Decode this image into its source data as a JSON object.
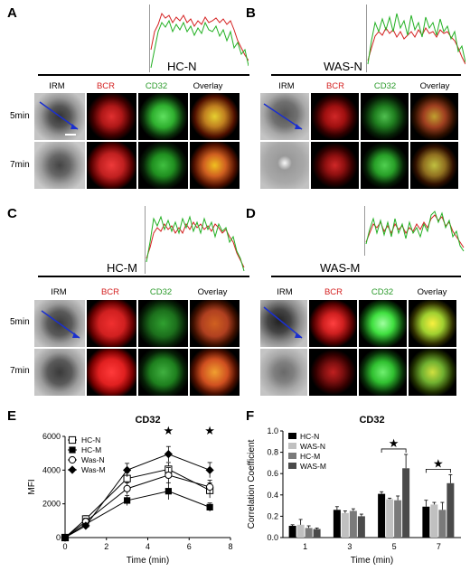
{
  "panels": {
    "A": {
      "letter": "A",
      "condition": "HC-N"
    },
    "B": {
      "letter": "B",
      "condition": "WAS-N"
    },
    "C": {
      "letter": "C",
      "condition": "HC-M"
    },
    "D": {
      "letter": "D",
      "condition": "WAS-M"
    }
  },
  "channels": [
    "IRM",
    "BCR",
    "CD32",
    "Overlay"
  ],
  "channel_colors": {
    "IRM": "#000000",
    "BCR": "#d42020",
    "CD32": "#2a9a2a",
    "Overlay": "#000000"
  },
  "times": [
    "5min",
    "7min"
  ],
  "chart_data": [
    {
      "panel": "E",
      "type": "line",
      "title": "CD32",
      "xlabel": "Time (min)",
      "ylabel": "MFI",
      "xlim": [
        0,
        8
      ],
      "ylim": [
        0,
        6000
      ],
      "xticks": [
        0,
        2,
        4,
        6,
        8
      ],
      "yticks": [
        0,
        2000,
        4000,
        6000
      ],
      "x": [
        0,
        1,
        3,
        5,
        7
      ],
      "series": [
        {
          "name": "HC-N",
          "marker": "open-square",
          "values": [
            0,
            1100,
            3500,
            4050,
            2800
          ],
          "errors": [
            0,
            200,
            350,
            400,
            450
          ]
        },
        {
          "name": "HC-M",
          "marker": "filled-square",
          "values": [
            0,
            800,
            2200,
            2750,
            1800
          ],
          "errors": [
            0,
            150,
            300,
            500,
            250
          ]
        },
        {
          "name": "Was-N",
          "marker": "open-circle",
          "values": [
            0,
            950,
            2900,
            3700,
            3000
          ],
          "errors": [
            0,
            200,
            350,
            450,
            400
          ]
        },
        {
          "name": "Was-M",
          "marker": "filled-diamond",
          "values": [
            0,
            700,
            4000,
            4950,
            4000
          ],
          "errors": [
            0,
            150,
            400,
            450,
            450
          ]
        }
      ],
      "annotations": [
        {
          "x": 5,
          "symbol": "★"
        },
        {
          "x": 7,
          "symbol": "★"
        }
      ],
      "legend": "top-left"
    },
    {
      "panel": "F",
      "type": "bar",
      "title": "CD32",
      "xlabel": "Time (min)",
      "ylabel": "Correlation Coefficient",
      "ylim": [
        0,
        1.0
      ],
      "yticks": [
        0.0,
        0.2,
        0.4,
        0.6,
        0.8,
        1.0
      ],
      "categories": [
        "1",
        "3",
        "5",
        "7"
      ],
      "series": [
        {
          "name": "HC-N",
          "color": "#000000",
          "values": [
            0.11,
            0.26,
            0.41,
            0.29
          ],
          "errors": [
            0.01,
            0.03,
            0.02,
            0.06
          ]
        },
        {
          "name": "WAS-N",
          "color": "#c0c0c0",
          "values": [
            0.12,
            0.23,
            0.36,
            0.31
          ],
          "errors": [
            0.05,
            0.02,
            0.01,
            0.02
          ]
        },
        {
          "name": "HC-M",
          "color": "#7a7a7a",
          "values": [
            0.09,
            0.25,
            0.35,
            0.26
          ],
          "errors": [
            0.02,
            0.02,
            0.04,
            0.07
          ]
        },
        {
          "name": "WAS-M",
          "color": "#4a4a4a",
          "values": [
            0.08,
            0.2,
            0.65,
            0.51
          ],
          "errors": [
            0.01,
            0.02,
            0.13,
            0.08
          ]
        }
      ],
      "annotations": [
        {
          "category": "5",
          "symbol": "★"
        },
        {
          "category": "7",
          "symbol": "★"
        }
      ],
      "legend": "top-left"
    }
  ]
}
